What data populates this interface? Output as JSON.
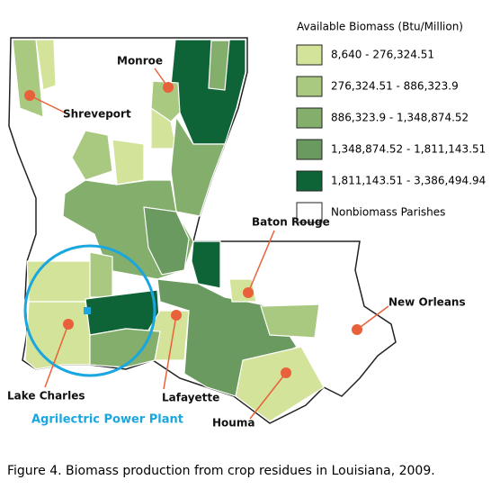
{
  "legend": {
    "title": "Available Biomass (Btu/Million)",
    "items": [
      {
        "label": "8,640 - 276,324.51",
        "color": "#d3e39a"
      },
      {
        "label": "276,324.51 - 886,323.9",
        "color": "#a8c97f"
      },
      {
        "label": "886,323.9 - 1,348,874.52",
        "color": "#83ae6b"
      },
      {
        "label": "1,348,874.52 - 1,811,143.51",
        "color": "#6a9a5f"
      },
      {
        "label": "1,811,143.51 - 3,386,494.94",
        "color": "#0f6437"
      },
      {
        "label": "Nonbiomass Parishes",
        "color": "#ffffff"
      }
    ]
  },
  "cities": [
    {
      "label": "Monroe"
    },
    {
      "label": "Shreveport"
    },
    {
      "label": "Baton Rouge"
    },
    {
      "label": "New Orleans"
    },
    {
      "label": "Lafayette"
    },
    {
      "label": "Lake Charles"
    },
    {
      "label": "Houma"
    }
  ],
  "plant": {
    "label": "Agrilectric Power Plant",
    "color": "#1aa6df"
  },
  "caption": "Figure 4. Biomass production from crop residues in Louisiana, 2009."
}
